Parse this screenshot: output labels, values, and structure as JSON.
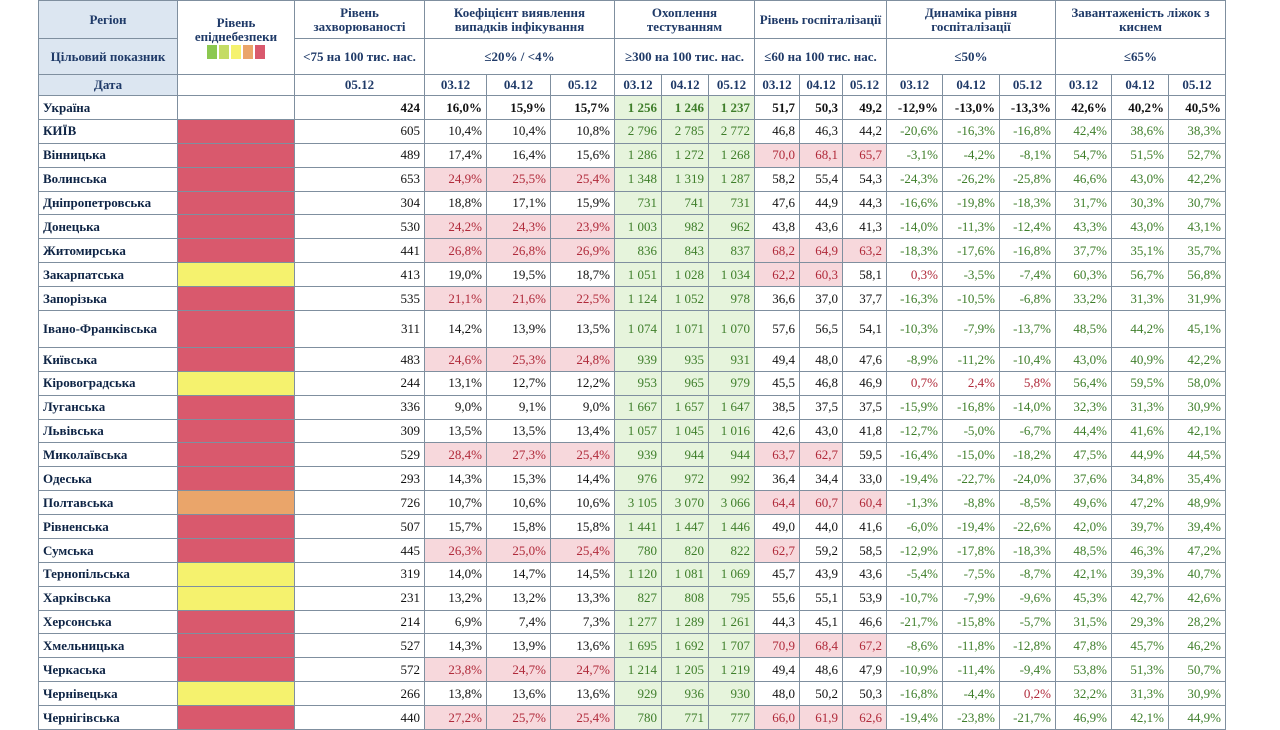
{
  "header": {
    "region": "Регіон",
    "target": "Цільовий показник",
    "date": "Дата",
    "epid": "Рівень епіднебезпеки",
    "incidence": "Рівень захворюваності",
    "incidence_target": "<75 на 100 тис. нас.",
    "positivity": "Коефіцієнт виявлення випадків інфікування",
    "positivity_target": "≤20% / <4%",
    "testing": "Охоплення тестуванням",
    "testing_target": "≥300 на 100 тис. нас.",
    "hosp": "Рівень госпіталізації",
    "hosp_target": "≤60 на 100 тис. нас.",
    "dyn": "Динаміка рівня госпіталізації",
    "dyn_target": "≤50%",
    "beds": "Завантаженість ліжок з киснем",
    "beds_target": "≤65%",
    "date_single": "05.12",
    "dates": [
      "03.12",
      "04.12",
      "05.12"
    ]
  },
  "legend_colors": [
    "#8cc850",
    "#c4dc64",
    "#f5f26e",
    "#eaa56a",
    "#d9596d"
  ],
  "colors": {
    "red": "#d9596d",
    "yellow": "#f5f26e",
    "orange": "#eaa56a"
  },
  "rows": [
    {
      "name": "Україна",
      "level": "",
      "inc": "424",
      "pos": [
        "16,0%",
        "15,9%",
        "15,7%"
      ],
      "test": [
        "1 256",
        "1 246",
        "1 237"
      ],
      "hosp": [
        "51,7",
        "50,3",
        "49,2"
      ],
      "dyn": [
        "-12,9%",
        "-13,0%",
        "-13,3%"
      ],
      "beds": [
        "42,6%",
        "40,2%",
        "40,5%"
      ]
    },
    {
      "name": "КИЇВ",
      "level": "red",
      "inc": "605",
      "pos": [
        "10,4%",
        "10,4%",
        "10,8%"
      ],
      "test": [
        "2 796",
        "2 785",
        "2 772"
      ],
      "hosp": [
        "46,8",
        "46,3",
        "44,2"
      ],
      "dyn": [
        "-20,6%",
        "-16,3%",
        "-16,8%"
      ],
      "beds": [
        "42,4%",
        "38,6%",
        "38,3%"
      ]
    },
    {
      "name": "Вінницька",
      "level": "red",
      "inc": "489",
      "pos": [
        "17,4%",
        "16,4%",
        "15,6%"
      ],
      "test": [
        "1 286",
        "1 272",
        "1 268"
      ],
      "hosp": [
        "70,0",
        "68,1",
        "65,7"
      ],
      "dyn": [
        "-3,1%",
        "-4,2%",
        "-8,1%"
      ],
      "beds": [
        "54,7%",
        "51,5%",
        "52,7%"
      ]
    },
    {
      "name": "Волинська",
      "level": "red",
      "inc": "653",
      "pos": [
        "24,9%",
        "25,5%",
        "25,4%"
      ],
      "test": [
        "1 348",
        "1 319",
        "1 287"
      ],
      "hosp": [
        "58,2",
        "55,4",
        "54,3"
      ],
      "dyn": [
        "-24,3%",
        "-26,2%",
        "-25,8%"
      ],
      "beds": [
        "46,6%",
        "43,0%",
        "42,2%"
      ]
    },
    {
      "name": "Дніпропетровська",
      "level": "red",
      "inc": "304",
      "pos": [
        "18,8%",
        "17,1%",
        "15,9%"
      ],
      "test": [
        "731",
        "741",
        "731"
      ],
      "hosp": [
        "47,6",
        "44,9",
        "44,3"
      ],
      "dyn": [
        "-16,6%",
        "-19,8%",
        "-18,3%"
      ],
      "beds": [
        "31,7%",
        "30,3%",
        "30,7%"
      ]
    },
    {
      "name": "Донецька",
      "level": "red",
      "inc": "530",
      "pos": [
        "24,2%",
        "24,3%",
        "23,9%"
      ],
      "test": [
        "1 003",
        "982",
        "962"
      ],
      "hosp": [
        "43,8",
        "43,6",
        "41,3"
      ],
      "dyn": [
        "-14,0%",
        "-11,3%",
        "-12,4%"
      ],
      "beds": [
        "43,3%",
        "43,0%",
        "43,1%"
      ]
    },
    {
      "name": "Житомирська",
      "level": "red",
      "inc": "441",
      "pos": [
        "26,8%",
        "26,8%",
        "26,9%"
      ],
      "test": [
        "836",
        "843",
        "837"
      ],
      "hosp": [
        "68,2",
        "64,9",
        "63,2"
      ],
      "dyn": [
        "-18,3%",
        "-17,6%",
        "-16,8%"
      ],
      "beds": [
        "37,7%",
        "35,1%",
        "35,7%"
      ]
    },
    {
      "name": "Закарпатська",
      "level": "yellow",
      "inc": "413",
      "pos": [
        "19,0%",
        "19,5%",
        "18,7%"
      ],
      "test": [
        "1 051",
        "1 028",
        "1 034"
      ],
      "hosp": [
        "62,2",
        "60,3",
        "58,1"
      ],
      "dyn": [
        "0,3%",
        "-3,5%",
        "-7,4%"
      ],
      "beds": [
        "60,3%",
        "56,7%",
        "56,8%"
      ]
    },
    {
      "name": "Запорізька",
      "level": "red",
      "inc": "535",
      "pos": [
        "21,1%",
        "21,6%",
        "22,5%"
      ],
      "test": [
        "1 124",
        "1 052",
        "978"
      ],
      "hosp": [
        "36,6",
        "37,0",
        "37,7"
      ],
      "dyn": [
        "-16,3%",
        "-10,5%",
        "-6,8%"
      ],
      "beds": [
        "33,2%",
        "31,3%",
        "31,9%"
      ]
    },
    {
      "name": "Івано-Франківська",
      "level": "red",
      "inc": "311",
      "pos": [
        "14,2%",
        "13,9%",
        "13,5%"
      ],
      "test": [
        "1 074",
        "1 071",
        "1 070"
      ],
      "hosp": [
        "57,6",
        "56,5",
        "54,1"
      ],
      "dyn": [
        "-10,3%",
        "-7,9%",
        "-13,7%"
      ],
      "beds": [
        "48,5%",
        "44,2%",
        "45,1%"
      ]
    },
    {
      "name": "Київська",
      "level": "red",
      "inc": "483",
      "pos": [
        "24,6%",
        "25,3%",
        "24,8%"
      ],
      "test": [
        "939",
        "935",
        "931"
      ],
      "hosp": [
        "49,4",
        "48,0",
        "47,6"
      ],
      "dyn": [
        "-8,9%",
        "-11,2%",
        "-10,4%"
      ],
      "beds": [
        "43,0%",
        "40,9%",
        "42,2%"
      ]
    },
    {
      "name": "Кіровоградська",
      "level": "yellow",
      "inc": "244",
      "pos": [
        "13,1%",
        "12,7%",
        "12,2%"
      ],
      "test": [
        "953",
        "965",
        "979"
      ],
      "hosp": [
        "45,5",
        "46,8",
        "46,9"
      ],
      "dyn": [
        "0,7%",
        "2,4%",
        "5,8%"
      ],
      "beds": [
        "56,4%",
        "59,5%",
        "58,0%"
      ]
    },
    {
      "name": "Луганська",
      "level": "red",
      "inc": "336",
      "pos": [
        "9,0%",
        "9,1%",
        "9,0%"
      ],
      "test": [
        "1 667",
        "1 657",
        "1 647"
      ],
      "hosp": [
        "38,5",
        "37,5",
        "37,5"
      ],
      "dyn": [
        "-15,9%",
        "-16,8%",
        "-14,0%"
      ],
      "beds": [
        "32,3%",
        "31,3%",
        "30,9%"
      ]
    },
    {
      "name": "Львівська",
      "level": "red",
      "inc": "309",
      "pos": [
        "13,5%",
        "13,5%",
        "13,4%"
      ],
      "test": [
        "1 057",
        "1 045",
        "1 016"
      ],
      "hosp": [
        "42,6",
        "43,0",
        "41,8"
      ],
      "dyn": [
        "-12,7%",
        "-5,0%",
        "-6,7%"
      ],
      "beds": [
        "44,4%",
        "41,6%",
        "42,1%"
      ]
    },
    {
      "name": "Миколаївська",
      "level": "red",
      "inc": "529",
      "pos": [
        "28,4%",
        "27,3%",
        "25,4%"
      ],
      "test": [
        "939",
        "944",
        "944"
      ],
      "hosp": [
        "63,7",
        "62,7",
        "59,5"
      ],
      "dyn": [
        "-16,4%",
        "-15,0%",
        "-18,2%"
      ],
      "beds": [
        "47,5%",
        "44,9%",
        "44,5%"
      ]
    },
    {
      "name": "Одеська",
      "level": "red",
      "inc": "293",
      "pos": [
        "14,3%",
        "15,3%",
        "14,4%"
      ],
      "test": [
        "976",
        "972",
        "992"
      ],
      "hosp": [
        "36,4",
        "34,4",
        "33,0"
      ],
      "dyn": [
        "-19,4%",
        "-22,7%",
        "-24,0%"
      ],
      "beds": [
        "37,6%",
        "34,8%",
        "35,4%"
      ]
    },
    {
      "name": "Полтавська",
      "level": "orange",
      "inc": "726",
      "pos": [
        "10,7%",
        "10,6%",
        "10,6%"
      ],
      "test": [
        "3 105",
        "3 070",
        "3 066"
      ],
      "hosp": [
        "64,4",
        "60,7",
        "60,4"
      ],
      "dyn": [
        "-1,3%",
        "-8,8%",
        "-8,5%"
      ],
      "beds": [
        "49,6%",
        "47,2%",
        "48,9%"
      ]
    },
    {
      "name": "Рівненська",
      "level": "red",
      "inc": "507",
      "pos": [
        "15,7%",
        "15,8%",
        "15,8%"
      ],
      "test": [
        "1 441",
        "1 447",
        "1 446"
      ],
      "hosp": [
        "49,0",
        "44,0",
        "41,6"
      ],
      "dyn": [
        "-6,0%",
        "-19,4%",
        "-22,6%"
      ],
      "beds": [
        "42,0%",
        "39,7%",
        "39,4%"
      ]
    },
    {
      "name": "Сумська",
      "level": "red",
      "inc": "445",
      "pos": [
        "26,3%",
        "25,0%",
        "25,4%"
      ],
      "test": [
        "780",
        "820",
        "822"
      ],
      "hosp": [
        "62,7",
        "59,2",
        "58,5"
      ],
      "dyn": [
        "-12,9%",
        "-17,8%",
        "-18,3%"
      ],
      "beds": [
        "48,5%",
        "46,3%",
        "47,2%"
      ]
    },
    {
      "name": "Тернопільська",
      "level": "yellow",
      "inc": "319",
      "pos": [
        "14,0%",
        "14,7%",
        "14,5%"
      ],
      "test": [
        "1 120",
        "1 081",
        "1 069"
      ],
      "hosp": [
        "45,7",
        "43,9",
        "43,6"
      ],
      "dyn": [
        "-5,4%",
        "-7,5%",
        "-8,7%"
      ],
      "beds": [
        "42,1%",
        "39,3%",
        "40,7%"
      ]
    },
    {
      "name": "Харківська",
      "level": "yellow",
      "inc": "231",
      "pos": [
        "13,2%",
        "13,2%",
        "13,3%"
      ],
      "test": [
        "827",
        "808",
        "795"
      ],
      "hosp": [
        "55,6",
        "55,1",
        "53,9"
      ],
      "dyn": [
        "-10,7%",
        "-7,9%",
        "-9,6%"
      ],
      "beds": [
        "45,3%",
        "42,7%",
        "42,6%"
      ]
    },
    {
      "name": "Херсонська",
      "level": "red",
      "inc": "214",
      "pos": [
        "6,9%",
        "7,4%",
        "7,3%"
      ],
      "test": [
        "1 277",
        "1 289",
        "1 261"
      ],
      "hosp": [
        "44,3",
        "45,1",
        "46,6"
      ],
      "dyn": [
        "-21,7%",
        "-15,8%",
        "-5,7%"
      ],
      "beds": [
        "31,5%",
        "29,3%",
        "28,2%"
      ]
    },
    {
      "name": "Хмельницька",
      "level": "red",
      "inc": "527",
      "pos": [
        "14,3%",
        "13,9%",
        "13,6%"
      ],
      "test": [
        "1 695",
        "1 692",
        "1 707"
      ],
      "hosp": [
        "70,9",
        "68,4",
        "67,2"
      ],
      "dyn": [
        "-8,6%",
        "-11,8%",
        "-12,8%"
      ],
      "beds": [
        "47,8%",
        "45,7%",
        "46,2%"
      ]
    },
    {
      "name": "Черкаська",
      "level": "red",
      "inc": "572",
      "pos": [
        "23,8%",
        "24,7%",
        "24,7%"
      ],
      "test": [
        "1 214",
        "1 205",
        "1 219"
      ],
      "hosp": [
        "49,4",
        "48,6",
        "47,9"
      ],
      "dyn": [
        "-10,9%",
        "-11,4%",
        "-9,4%"
      ],
      "beds": [
        "53,8%",
        "51,3%",
        "50,7%"
      ]
    },
    {
      "name": "Чернівецька",
      "level": "yellow",
      "inc": "266",
      "pos": [
        "13,8%",
        "13,6%",
        "13,6%"
      ],
      "test": [
        "929",
        "936",
        "930"
      ],
      "hosp": [
        "48,0",
        "50,2",
        "50,3"
      ],
      "dyn": [
        "-16,8%",
        "-4,4%",
        "0,2%"
      ],
      "beds": [
        "32,2%",
        "31,3%",
        "30,9%"
      ]
    },
    {
      "name": "Чернігівська",
      "level": "red",
      "inc": "440",
      "pos": [
        "27,2%",
        "25,7%",
        "25,4%"
      ],
      "test": [
        "780",
        "771",
        "777"
      ],
      "hosp": [
        "66,0",
        "61,9",
        "62,6"
      ],
      "dyn": [
        "-19,4%",
        "-23,8%",
        "-21,7%"
      ],
      "beds": [
        "46,9%",
        "42,1%",
        "44,9%"
      ]
    }
  ]
}
